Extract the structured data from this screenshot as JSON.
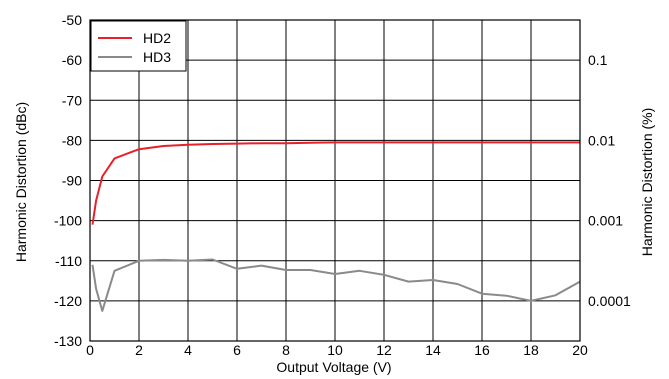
{
  "chart_data": {
    "type": "line",
    "xlabel": "Output Voltage (V)",
    "ylabel": "Harmonic Distortion (dBc)",
    "y2label": "Harmonic Distortion (%)",
    "xlim": [
      0,
      20
    ],
    "ylim": [
      -130,
      -50
    ],
    "x_ticks": [
      "0",
      "2",
      "4",
      "6",
      "8",
      "10",
      "12",
      "14",
      "16",
      "18",
      "20"
    ],
    "y_ticks": [
      "-50",
      "-60",
      "-70",
      "-80",
      "-90",
      "-100",
      "-110",
      "-120",
      "-130"
    ],
    "y2_ticks": [
      {
        "label": "0.1",
        "dbc": -60
      },
      {
        "label": "0.01",
        "dbc": -80
      },
      {
        "label": "0.001",
        "dbc": -100
      },
      {
        "label": "0.0001",
        "dbc": -120
      }
    ],
    "grid": true,
    "legend_position": "top-left",
    "series": [
      {
        "name": "HD2",
        "color": "#e8202a",
        "points": [
          [
            0.1,
            -101
          ],
          [
            0.25,
            -95
          ],
          [
            0.5,
            -89
          ],
          [
            1,
            -84.5
          ],
          [
            2,
            -82.2
          ],
          [
            3,
            -81.4
          ],
          [
            4,
            -81.1
          ],
          [
            5,
            -80.9
          ],
          [
            6,
            -80.8
          ],
          [
            7,
            -80.7
          ],
          [
            8,
            -80.7
          ],
          [
            9,
            -80.6
          ],
          [
            10,
            -80.5
          ],
          [
            11,
            -80.5
          ],
          [
            12,
            -80.5
          ],
          [
            13,
            -80.5
          ],
          [
            14,
            -80.5
          ],
          [
            15,
            -80.5
          ],
          [
            16,
            -80.5
          ],
          [
            17,
            -80.5
          ],
          [
            18,
            -80.5
          ],
          [
            19,
            -80.5
          ],
          [
            20,
            -80.5
          ]
        ]
      },
      {
        "name": "HD3",
        "color": "#8a8a8a",
        "points": [
          [
            0.1,
            -111
          ],
          [
            0.25,
            -117
          ],
          [
            0.5,
            -122.5
          ],
          [
            1,
            -112.5
          ],
          [
            2,
            -110
          ],
          [
            3,
            -109.8
          ],
          [
            4,
            -110
          ],
          [
            5,
            -109.7
          ],
          [
            6,
            -112
          ],
          [
            7,
            -111.2
          ],
          [
            8,
            -112.3
          ],
          [
            9,
            -112.3
          ],
          [
            10,
            -113.3
          ],
          [
            11,
            -112.5
          ],
          [
            12,
            -113.5
          ],
          [
            13,
            -115.2
          ],
          [
            14,
            -114.8
          ],
          [
            15,
            -115.8
          ],
          [
            16,
            -118.2
          ],
          [
            17,
            -118.7
          ],
          [
            18,
            -120
          ],
          [
            19,
            -118.6
          ],
          [
            20,
            -115.2
          ]
        ]
      }
    ]
  }
}
